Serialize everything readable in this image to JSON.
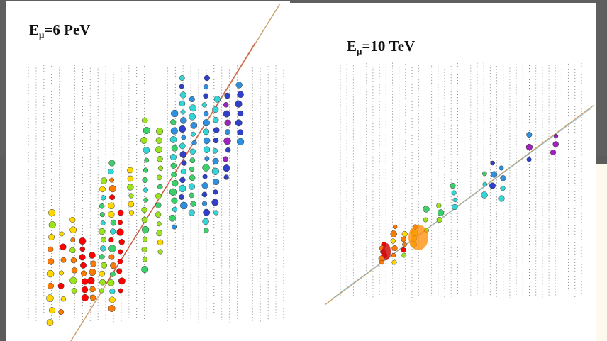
{
  "events": [
    {
      "label_main": "E",
      "label_sub": "μ",
      "label_value": "=6 PeV"
    },
    {
      "label_main": "E",
      "label_sub": "μ",
      "label_value": "=10 TeV"
    }
  ],
  "colors": {
    "slide_background": "#5c5c5c",
    "panel_background": "#ffffff",
    "right_edge_background": "#fdf9ec",
    "track_line": "#c8a066",
    "string_dots": "#222222",
    "hit_palette": [
      "#ff0000",
      "#ff7a00",
      "#ffd800",
      "#9be31c",
      "#3cd06a",
      "#33d6d6",
      "#2f8fe0",
      "#3040c8",
      "#a020c0"
    ]
  }
}
